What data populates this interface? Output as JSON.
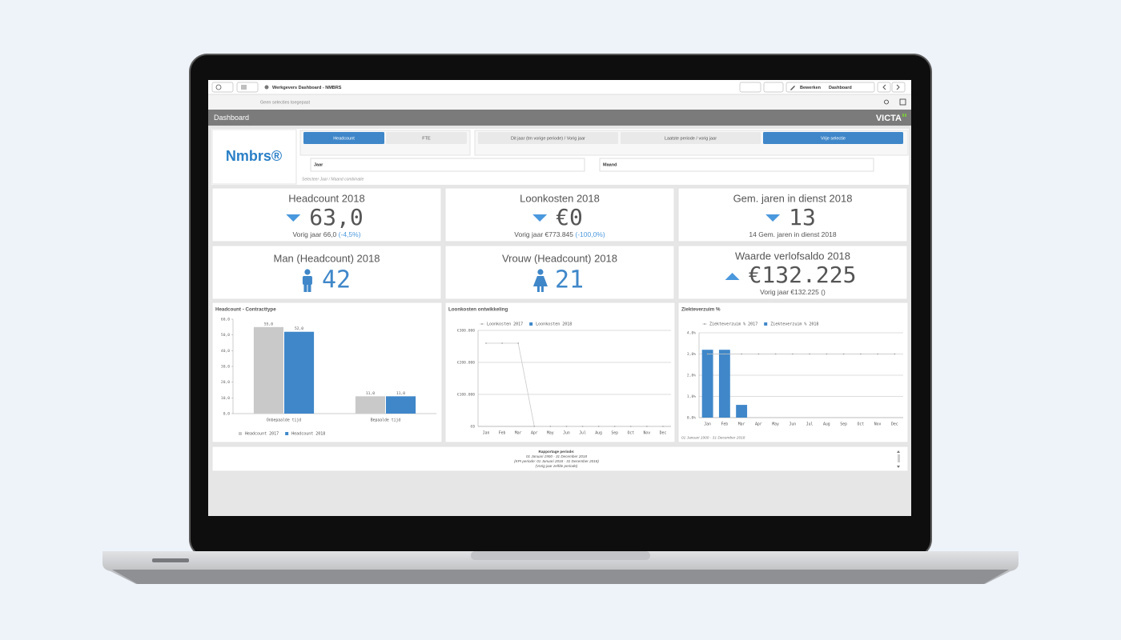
{
  "window": {
    "title": "Werkgevers Dashboard - NMBRS",
    "selections": "Geen selecties toegepast",
    "edit_button": "Bewerken",
    "sheet_button": "Dashboard"
  },
  "sheet": {
    "title": "Dashboard",
    "brand": "VICTA"
  },
  "logo": "Nmbrs®",
  "filters": {
    "measure_buttons": [
      {
        "label": "Headcount",
        "active": true
      },
      {
        "label": "FTE",
        "active": false
      }
    ],
    "period_buttons": [
      {
        "label": "Dit jaar (tm vorige periode) / Vorig jaar",
        "active": false
      },
      {
        "label": "Laatste periode / vorig jaar",
        "active": false
      },
      {
        "label": "Vrije selectie",
        "active": true
      }
    ],
    "fields": [
      "Jaar",
      "Maand"
    ],
    "hint": "Selecteer Jaar / Maand combinatie"
  },
  "kpis": [
    {
      "title": "Headcount 2018",
      "value": "63,0",
      "trend": "down",
      "color": "#555555",
      "sub": "Vorig jaar 66,0 ",
      "change": "(-4,5%)"
    },
    {
      "title": "Loonkosten 2018",
      "value": "€0",
      "trend": "down",
      "color": "#555555",
      "sub": "Vorig jaar €773.845 ",
      "change": "(-100,0%)"
    },
    {
      "title": "Gem. jaren in dienst 2018",
      "value": "13",
      "trend": "down",
      "color": "#555555",
      "sub": "14 Gem. jaren in dienst 2018"
    },
    {
      "title": "Man (Headcount) 2018",
      "value": "42",
      "icon": "man",
      "color": "#3f87c9"
    },
    {
      "title": "Vrouw (Headcount) 2018",
      "value": "21",
      "icon": "woman",
      "color": "#3f87c9"
    },
    {
      "title": "Waarde verlofsaldo 2018",
      "value": "€132.225",
      "trend": "up",
      "color": "#555555",
      "sub": "Vorig jaar €132.225 ()"
    }
  ],
  "chart_data": [
    {
      "type": "bar",
      "title": "Headcount - Contracttype",
      "categories": [
        "Onbepaalde tijd",
        "Bepaalde tijd"
      ],
      "series": [
        {
          "name": "Headcount 2017",
          "color": "#c9c9c9",
          "values": [
            55,
            11
          ],
          "value_labels": [
            "55,0",
            "11,0"
          ]
        },
        {
          "name": "Headcount 2018",
          "color": "#3f87c9",
          "values": [
            52,
            11
          ],
          "value_labels": [
            "52,0",
            "11,0"
          ]
        }
      ],
      "ylim": [
        0,
        60
      ],
      "yticks": [
        {
          "value": 0,
          "label": "0,0"
        },
        {
          "value": 10,
          "label": "10,0"
        },
        {
          "value": 20,
          "label": "20,0"
        },
        {
          "value": 30,
          "label": "30,0"
        },
        {
          "value": 40,
          "label": "40,0"
        },
        {
          "value": 50,
          "label": "50,0"
        },
        {
          "value": 60,
          "label": "60,0"
        }
      ],
      "grid": false,
      "legend": "bottom"
    },
    {
      "type": "combo",
      "title": "Loonkosten ontwikkeling",
      "categories": [
        "Jan",
        "Feb",
        "Mar",
        "Apr",
        "May",
        "Jun",
        "Jul",
        "Aug",
        "Sep",
        "Oct",
        "Nov",
        "Dec"
      ],
      "series": [
        {
          "name": "Loonkosten 2017",
          "type": "line",
          "color": "#c9c9c9",
          "values": [
            260000,
            260000,
            260000,
            0,
            0,
            0,
            0,
            0,
            0,
            0,
            0,
            0
          ]
        },
        {
          "name": "Loonkosten 2018",
          "type": "bar",
          "color": "#3f87c9",
          "values": [
            0,
            0,
            0,
            0,
            0,
            0,
            0,
            0,
            0,
            0,
            0,
            0
          ]
        }
      ],
      "ylim": [
        0,
        300000
      ],
      "yticks": [
        {
          "value": 0,
          "label": "€0"
        },
        {
          "value": 100000,
          "label": "€100.000"
        },
        {
          "value": 200000,
          "label": "€200.000"
        },
        {
          "value": 300000,
          "label": "€300.000"
        }
      ],
      "grid": true,
      "legend": "top"
    },
    {
      "type": "combo",
      "title": "Ziekteverzuim %",
      "categories": [
        "Jan",
        "Feb",
        "Mar",
        "Apr",
        "May",
        "Jun",
        "Jul",
        "Aug",
        "Sep",
        "Oct",
        "Nov",
        "Dec"
      ],
      "series": [
        {
          "name": "Ziekteverzuim % 2017",
          "type": "line",
          "color": "#c9c9c9",
          "values": [
            3.0,
            3.0,
            3.0,
            3.0,
            3.0,
            3.0,
            3.0,
            3.0,
            3.0,
            3.0,
            3.0,
            3.0
          ]
        },
        {
          "name": "Ziekteverzuim % 2018",
          "type": "bar",
          "color": "#3f87c9",
          "values": [
            3.2,
            3.2,
            0.6,
            0,
            0,
            0,
            0,
            0,
            0,
            0,
            0,
            0
          ]
        }
      ],
      "ylim": [
        0,
        4
      ],
      "yticks": [
        {
          "value": 0,
          "label": "0,0%"
        },
        {
          "value": 1,
          "label": "1,0%"
        },
        {
          "value": 2,
          "label": "2,0%"
        },
        {
          "value": 3,
          "label": "3,0%"
        },
        {
          "value": 4,
          "label": "4,0%"
        }
      ],
      "grid": true,
      "legend": "top",
      "note": "01 Januari 1900 - 31 December 2018"
    }
  ],
  "report_period": {
    "title": "Rapportage periode:",
    "lines": [
      "01 Januari 1900 - 31 December 2018",
      "(KPI periode: 01 Januari 2018 - 31 December 2018)",
      "(Vorig jaar zelfde periode)"
    ]
  }
}
